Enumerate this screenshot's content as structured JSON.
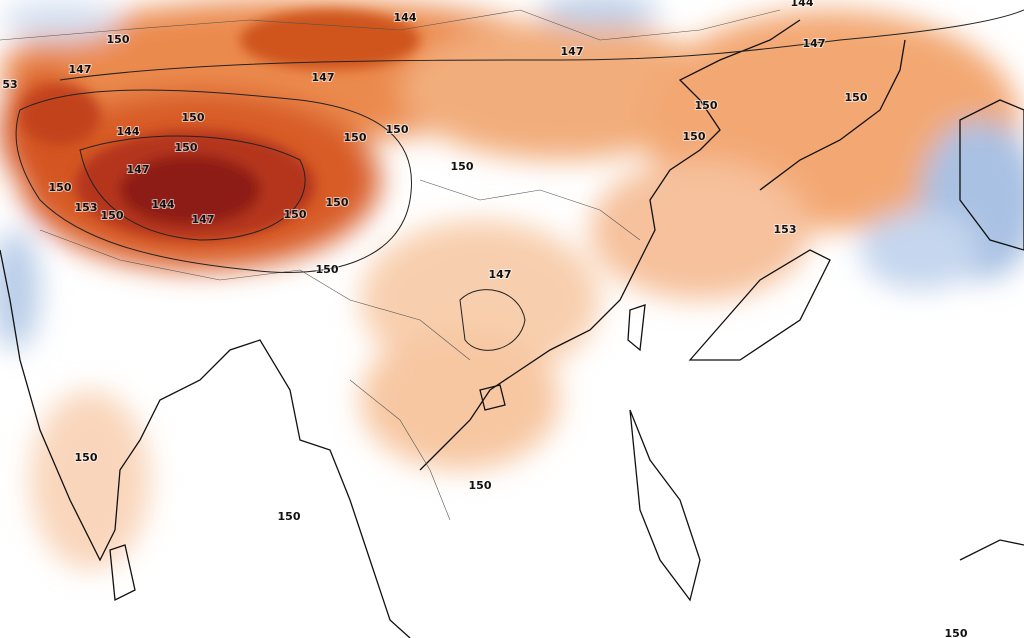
{
  "contour_labels": [
    "144",
    "144",
    "150",
    "147",
    "147",
    "147",
    "147",
    "53",
    "150",
    "150",
    "150",
    "144",
    "150",
    "150",
    "150",
    "150",
    "150",
    "147",
    "150",
    "150",
    "153",
    "150",
    "144",
    "147",
    "150",
    "153",
    "150",
    "147",
    "150",
    "150",
    "150",
    "150"
  ]
}
